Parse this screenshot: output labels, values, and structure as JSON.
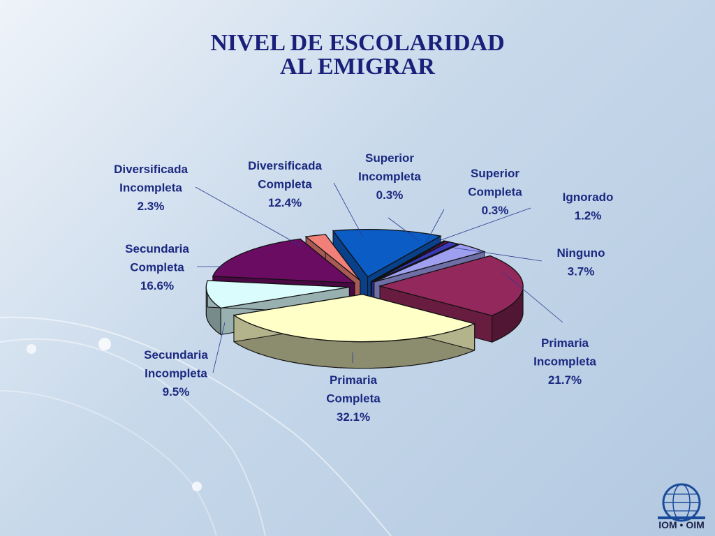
{
  "title_line1": "NIVEL DE ESCOLARIDAD",
  "title_line2": "AL EMIGRAR",
  "logo_text": "IOM • OIM",
  "chart_data": {
    "type": "pie",
    "title": "NIVEL DE ESCOLARIDAD AL EMIGRAR",
    "slices": [
      {
        "label": [
          "Diversificada",
          "Completa",
          "12.4%"
        ],
        "value": 12.4,
        "color": "#0b5cc4"
      },
      {
        "label": [
          "Superior",
          "Incompleta",
          "0.3%"
        ],
        "value": 0.3,
        "color": "#1a1a60"
      },
      {
        "label": [
          "Superior",
          "Completa",
          "0.3%"
        ],
        "value": 0.3,
        "color": "#d0109a"
      },
      {
        "label": [
          "Ignorado",
          "1.2%"
        ],
        "value": 1.2,
        "color": "#3a3ab8"
      },
      {
        "label": [
          "Ninguno",
          "3.7%"
        ],
        "value": 3.7,
        "color": "#9f9ff0"
      },
      {
        "label": [
          "Primaria",
          "Incompleta",
          "21.7%"
        ],
        "value": 21.7,
        "color": "#93285c"
      },
      {
        "label": [
          "Primaria",
          "Completa",
          "32.1%"
        ],
        "value": 32.1,
        "color": "#ffffc8"
      },
      {
        "label": [
          "Secundaria",
          "Incompleta",
          "9.5%"
        ],
        "value": 9.5,
        "color": "#dafcfc"
      },
      {
        "label": [
          "Secundaria",
          "Completa",
          "16.6%"
        ],
        "value": 16.6,
        "color": "#6a0c62"
      },
      {
        "label": [
          "Diversificada",
          "Incompleta",
          "2.3%"
        ],
        "value": 2.3,
        "color": "#f08078"
      }
    ],
    "legend": "none",
    "exploded": true
  }
}
